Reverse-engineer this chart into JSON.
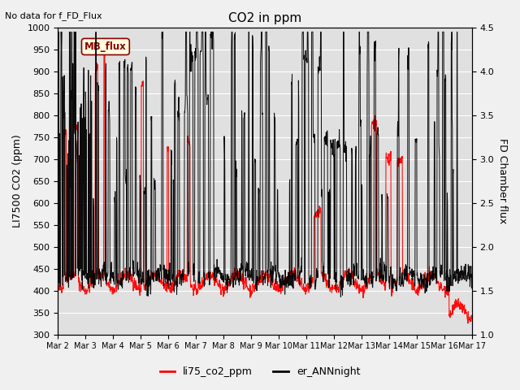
{
  "title": "CO2 in ppm",
  "title_note": "No data for f_FD_Flux",
  "ylabel_left": "LI7500 CO2 (ppm)",
  "ylabel_right": "FD Chamber flux",
  "ylim_left": [
    300,
    1000
  ],
  "ylim_right": [
    1.0,
    4.5
  ],
  "legend_label1": "li75_co2_ppm",
  "legend_label2": "er_ANNnight",
  "legend_box_label": "MB_flux",
  "background_color": "#e0e0e0",
  "xtick_positions": [
    0,
    1,
    2,
    3,
    4,
    5,
    6,
    7,
    8,
    9,
    10,
    11,
    12,
    13,
    14,
    15
  ],
  "xtick_labels": [
    "Mar 2",
    "Mar 3",
    "Mar 4",
    "Mar 5",
    "Mar 6",
    "Mar 7",
    "Mar 8",
    "Mar 9",
    "Mar 10",
    "Mar 11",
    "Mar 12",
    "Mar 13",
    "Mar 14",
    "Mar 15",
    "Mar 16",
    "Mar 17"
  ],
  "yticks_left": [
    300,
    350,
    400,
    450,
    500,
    550,
    600,
    650,
    700,
    750,
    800,
    850,
    900,
    950,
    1000
  ],
  "yticks_right": [
    1.0,
    1.5,
    2.0,
    2.5,
    3.0,
    3.5,
    4.0,
    4.5
  ],
  "line1_color": "red",
  "line2_color": "black",
  "fig_facecolor": "#f0f0f0"
}
